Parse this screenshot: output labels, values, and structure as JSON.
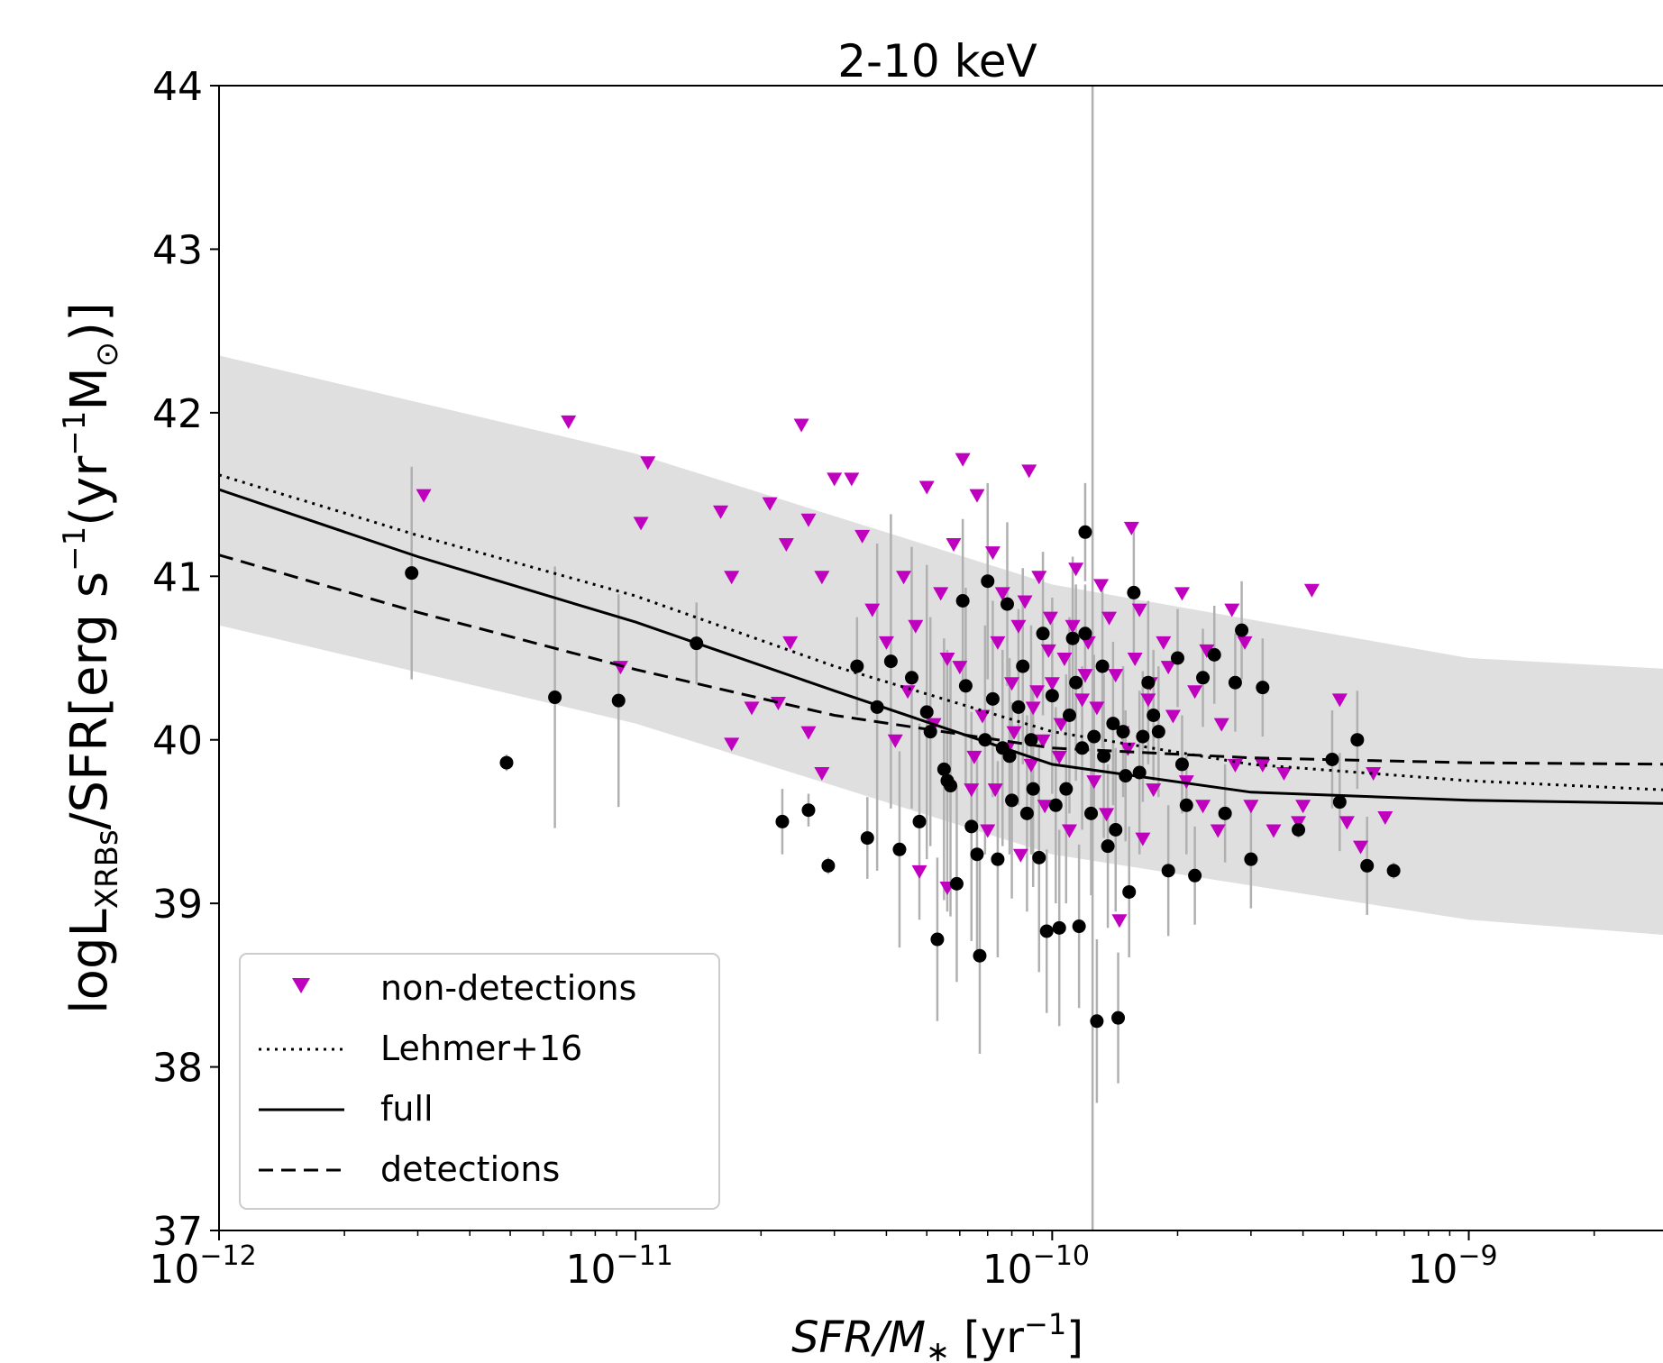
{
  "chart_data": {
    "type": "scatter",
    "title": "2-10 keV",
    "xlabel": {
      "italic": "SFR/M",
      "sub": "∗",
      "rest": " [yr",
      "sup": "−1",
      "close": "]"
    },
    "ylabel": {
      "pre": "logL",
      "sub": "XRBs",
      "mid": "/SFR[erg s",
      "sup1": "−1",
      "mid2": "(yr",
      "sup2": "−1",
      "mid3": "M",
      "sub2": "⊙",
      "close": ")]"
    },
    "x_scale": "log",
    "xlim": [
      1e-12,
      3.2e-09
    ],
    "ylim": [
      37,
      44
    ],
    "x_ticks": [
      {
        "value": 1e-12,
        "base": "10",
        "exp": "−12"
      },
      {
        "value": 1e-11,
        "base": "10",
        "exp": "−11"
      },
      {
        "value": 1e-10,
        "base": "10",
        "exp": "−10"
      },
      {
        "value": 1e-09,
        "base": "10",
        "exp": "−9"
      }
    ],
    "y_ticks": [
      "37",
      "38",
      "39",
      "40",
      "41",
      "42",
      "43",
      "44"
    ],
    "grid": false,
    "vertical_line": {
      "x": 1.25e-10,
      "color": "#b0b0b0"
    },
    "band": {
      "color": "#d9d9d9",
      "lower": [
        [
          1e-12,
          40.7
        ],
        [
          1e-11,
          40.1
        ],
        [
          1e-10,
          39.3
        ],
        [
          1e-09,
          38.9
        ],
        [
          3.2e-09,
          38.8
        ]
      ],
      "upper": [
        [
          1e-12,
          42.35
        ],
        [
          1e-11,
          41.75
        ],
        [
          1e-10,
          40.95
        ],
        [
          1e-09,
          40.5
        ],
        [
          3.2e-09,
          40.43
        ]
      ]
    },
    "lines": [
      {
        "name": "Lehmer+16",
        "style": "dotted",
        "points": [
          [
            1e-12,
            41.62
          ],
          [
            3e-12,
            41.25
          ],
          [
            1e-11,
            40.88
          ],
          [
            3e-11,
            40.45
          ],
          [
            1e-10,
            40.05
          ],
          [
            3e-10,
            39.85
          ],
          [
            1e-09,
            39.75
          ],
          [
            3.2e-09,
            39.69
          ]
        ]
      },
      {
        "name": "full",
        "style": "solid",
        "points": [
          [
            1e-12,
            41.53
          ],
          [
            3e-12,
            41.12
          ],
          [
            1e-11,
            40.72
          ],
          [
            3e-11,
            40.3
          ],
          [
            1e-10,
            39.85
          ],
          [
            3e-10,
            39.68
          ],
          [
            1e-09,
            39.63
          ],
          [
            3.2e-09,
            39.61
          ]
        ]
      },
      {
        "name": "detections",
        "style": "dashed",
        "points": [
          [
            1e-12,
            41.13
          ],
          [
            3e-12,
            40.78
          ],
          [
            1e-11,
            40.43
          ],
          [
            3e-11,
            40.15
          ],
          [
            1e-10,
            39.95
          ],
          [
            3e-10,
            39.89
          ],
          [
            1e-09,
            39.86
          ],
          [
            3.2e-09,
            39.85
          ]
        ]
      }
    ],
    "series": [
      {
        "name": "non-detections",
        "marker": "triangle-down",
        "color": "#bf00bf",
        "points": [
          [
            3.1e-12,
            41.5
          ],
          [
            6.9e-12,
            41.95
          ],
          [
            1.03e-11,
            41.33
          ],
          [
            1.07e-11,
            41.7
          ],
          [
            9.2e-12,
            40.45
          ],
          [
            1.6e-11,
            41.4
          ],
          [
            1.7e-11,
            41.0
          ],
          [
            1.9e-11,
            40.2
          ],
          [
            2.1e-11,
            41.45
          ],
          [
            2.3e-11,
            41.2
          ],
          [
            2.35e-11,
            40.6
          ],
          [
            2.5e-11,
            41.93
          ],
          [
            2.6e-11,
            41.35
          ],
          [
            2.8e-11,
            41.0
          ],
          [
            3e-11,
            41.6
          ],
          [
            3.3e-11,
            41.6
          ],
          [
            3.5e-11,
            41.25
          ],
          [
            3.7e-11,
            40.8
          ],
          [
            2.6e-11,
            40.05
          ],
          [
            2.2e-11,
            40.23
          ],
          [
            1.7e-11,
            39.98
          ],
          [
            2.8e-11,
            39.8
          ],
          [
            4e-11,
            40.6
          ],
          [
            4.4e-11,
            41.0
          ],
          [
            4.7e-11,
            40.7
          ],
          [
            5e-11,
            41.55
          ],
          [
            5.4e-11,
            40.9
          ],
          [
            5.8e-11,
            41.2
          ],
          [
            6.1e-11,
            41.72
          ],
          [
            6.6e-11,
            41.5
          ],
          [
            7.2e-11,
            41.15
          ],
          [
            7.6e-11,
            40.9
          ],
          [
            8.3e-11,
            40.7
          ],
          [
            8.8e-11,
            41.65
          ],
          [
            9.3e-11,
            41.0
          ],
          [
            9.9e-11,
            40.75
          ],
          [
            1.07e-10,
            40.5
          ],
          [
            1.14e-10,
            41.05
          ],
          [
            1.22e-10,
            40.6
          ],
          [
            1.31e-10,
            40.95
          ],
          [
            1.42e-10,
            40.4
          ],
          [
            1.55e-10,
            41.3
          ],
          [
            1.62e-10,
            40.8
          ],
          [
            1.72e-10,
            40.35
          ],
          [
            1.85e-10,
            40.6
          ],
          [
            1.95e-10,
            40.15
          ],
          [
            2.05e-10,
            40.9
          ],
          [
            2.2e-10,
            40.3
          ],
          [
            2.35e-10,
            40.55
          ],
          [
            2.55e-10,
            40.1
          ],
          [
            2.7e-10,
            40.8
          ],
          [
            2.9e-10,
            40.6
          ],
          [
            3.2e-10,
            39.85
          ],
          [
            3.6e-10,
            39.8
          ],
          [
            3.9e-10,
            39.5
          ],
          [
            4.2e-10,
            40.92
          ],
          [
            4.9e-10,
            40.25
          ],
          [
            5.1e-10,
            39.5
          ],
          [
            5.5e-10,
            39.35
          ],
          [
            5.9e-10,
            39.8
          ],
          [
            6.3e-10,
            39.53
          ],
          [
            4.8e-11,
            39.2
          ],
          [
            5.6e-11,
            39.1
          ],
          [
            6.4e-11,
            39.7
          ],
          [
            7e-11,
            39.45
          ],
          [
            7.8e-11,
            39.95
          ],
          [
            8.4e-11,
            39.3
          ],
          [
            9e-11,
            40.2
          ],
          [
            9.6e-11,
            39.6
          ],
          [
            1.04e-10,
            39.9
          ],
          [
            1.1e-10,
            39.45
          ],
          [
            1.18e-10,
            40.25
          ],
          [
            1.26e-10,
            39.75
          ],
          [
            1.35e-10,
            39.55
          ],
          [
            1.45e-10,
            38.9
          ],
          [
            1.52e-10,
            39.95
          ],
          [
            1.65e-10,
            39.4
          ],
          [
            1.75e-10,
            39.7
          ],
          [
            1.9e-10,
            40.45
          ],
          [
            2.1e-10,
            39.75
          ],
          [
            2.3e-10,
            39.6
          ],
          [
            2.5e-10,
            39.45
          ],
          [
            2.75e-10,
            39.85
          ],
          [
            3e-10,
            39.6
          ],
          [
            3.4e-10,
            39.45
          ],
          [
            4e-10,
            39.6
          ],
          [
            6e-11,
            40.45
          ],
          [
            6.8e-11,
            40.15
          ],
          [
            7.4e-11,
            40.6
          ],
          [
            8e-11,
            40.35
          ],
          [
            8.6e-11,
            40.85
          ],
          [
            9.2e-11,
            40.3
          ],
          [
            9.8e-11,
            40.55
          ],
          [
            1.05e-10,
            40.1
          ],
          [
            1.12e-10,
            40.7
          ],
          [
            1.2e-10,
            40.4
          ],
          [
            1.28e-10,
            40.2
          ],
          [
            1.37e-10,
            40.75
          ],
          [
            1.47e-10,
            40.05
          ],
          [
            1.58e-10,
            40.5
          ],
          [
            1.7e-10,
            40.25
          ],
          [
            5.2e-11,
            40.1
          ],
          [
            5.6e-11,
            40.5
          ],
          [
            4.5e-11,
            40.3
          ],
          [
            4.2e-11,
            40.0
          ],
          [
            6.5e-11,
            39.9
          ],
          [
            7.3e-11,
            39.7
          ],
          [
            8.1e-11,
            40.05
          ],
          [
            8.9e-11,
            39.85
          ],
          [
            9.5e-11,
            40.0
          ],
          [
            1e-10,
            40.35
          ]
        ]
      },
      {
        "name": "",
        "marker": "circle",
        "color": "#000000",
        "points": [
          [
            2.9e-12,
            41.02,
            0.65
          ],
          [
            4.9e-12,
            39.86,
            0.05
          ],
          [
            6.4e-12,
            40.26,
            0.8
          ],
          [
            9.1e-12,
            40.24,
            0.65
          ],
          [
            1.4e-11,
            40.59,
            0.25
          ],
          [
            2.25e-11,
            39.5,
            0.2
          ],
          [
            2.6e-11,
            39.57,
            0.1
          ],
          [
            2.9e-11,
            39.23,
            0.05
          ],
          [
            3.4e-11,
            40.45,
            0.3
          ],
          [
            3.6e-11,
            39.4,
            0.25
          ],
          [
            3.8e-11,
            40.2,
            1.0
          ],
          [
            4.1e-11,
            40.48,
            0.9
          ],
          [
            4.3e-11,
            39.33,
            0.6
          ],
          [
            4.6e-11,
            40.38,
            0.8
          ],
          [
            4.8e-11,
            39.5,
            0.6
          ],
          [
            5e-11,
            40.17,
            0.9
          ],
          [
            5.3e-11,
            38.78,
            0.5
          ],
          [
            5.5e-11,
            39.82,
            0.8
          ],
          [
            5.9e-11,
            39.12,
            0.6
          ],
          [
            6.2e-11,
            40.33,
            0.6
          ],
          [
            6.4e-11,
            39.47,
            0.7
          ],
          [
            6.7e-11,
            38.68,
            0.6
          ],
          [
            7e-11,
            40.97,
            0.6
          ],
          [
            7.4e-11,
            39.27,
            0.6
          ],
          [
            7.8e-11,
            40.83,
            0.5
          ],
          [
            8e-11,
            39.63,
            0.6
          ],
          [
            8.5e-11,
            40.45,
            0.6
          ],
          [
            8.9e-11,
            40.0,
            0.7
          ],
          [
            9.3e-11,
            39.28,
            0.7
          ],
          [
            9.7e-11,
            38.83,
            0.5
          ],
          [
            1e-10,
            40.27,
            0.6
          ],
          [
            1.04e-10,
            38.85,
            0.6
          ],
          [
            1.08e-10,
            39.7,
            0.7
          ],
          [
            1.12e-10,
            40.62,
            0.5
          ],
          [
            1.16e-10,
            38.86,
            0.5
          ],
          [
            1.2e-10,
            41.27,
            0.3
          ],
          [
            1.24e-10,
            39.55,
            0.5
          ],
          [
            1.28e-10,
            38.28,
            0.5
          ],
          [
            1.32e-10,
            40.45,
            0.5
          ],
          [
            1.36e-10,
            39.35,
            0.5
          ],
          [
            1.4e-10,
            40.1,
            0.5
          ],
          [
            1.44e-10,
            38.3,
            0.4
          ],
          [
            1.48e-10,
            40.05,
            0.4
          ],
          [
            1.53e-10,
            39.07,
            0.4
          ],
          [
            1.57e-10,
            40.9,
            0.4
          ],
          [
            1.62e-10,
            39.8,
            0.5
          ],
          [
            1.7e-10,
            40.35,
            0.5
          ],
          [
            1.8e-10,
            40.05,
            0.4
          ],
          [
            1.9e-10,
            39.2,
            0.4
          ],
          [
            2e-10,
            40.5,
            0.3
          ],
          [
            2.1e-10,
            39.6,
            0.3
          ],
          [
            2.2e-10,
            39.17,
            0.3
          ],
          [
            2.3e-10,
            40.38,
            0.3
          ],
          [
            2.45e-10,
            40.52,
            0.3
          ],
          [
            2.6e-10,
            39.55,
            0.3
          ],
          [
            2.75e-10,
            40.35,
            0.3
          ],
          [
            2.85e-10,
            40.67,
            0.3
          ],
          [
            3e-10,
            39.27,
            0.3
          ],
          [
            3.2e-10,
            40.32,
            0.3
          ],
          [
            3.9e-10,
            39.45,
            0.05
          ],
          [
            4.7e-10,
            39.88,
            0.3
          ],
          [
            4.9e-10,
            39.62,
            0.3
          ],
          [
            5.4e-10,
            40.0,
            0.3
          ],
          [
            5.7e-10,
            39.23,
            0.3
          ],
          [
            6.6e-10,
            39.2,
            0.05
          ],
          [
            5.7e-11,
            39.72,
            0.8
          ],
          [
            6.9e-11,
            40.0,
            0.7
          ],
          [
            7.6e-11,
            39.95,
            0.6
          ],
          [
            8.3e-11,
            40.2,
            0.6
          ],
          [
            9e-11,
            39.7,
            0.6
          ],
          [
            1.02e-10,
            39.6,
            0.6
          ],
          [
            1.1e-10,
            40.15,
            0.6
          ],
          [
            6.1e-11,
            40.85,
            0.5
          ],
          [
            7.2e-11,
            40.25,
            0.6
          ],
          [
            9.5e-11,
            40.65,
            0.5
          ],
          [
            1.18e-10,
            39.95,
            0.5
          ],
          [
            1.26e-10,
            40.02,
            0.5
          ],
          [
            1.33e-10,
            39.9,
            0.5
          ],
          [
            1.42e-10,
            39.45,
            0.5
          ],
          [
            1.5e-10,
            39.78,
            0.4
          ],
          [
            1.65e-10,
            40.02,
            0.4
          ],
          [
            1.75e-10,
            40.15,
            0.4
          ],
          [
            2.05e-10,
            39.85,
            0.3
          ],
          [
            1.2e-10,
            40.65,
            0.3
          ],
          [
            7.9e-11,
            39.9,
            0.6
          ],
          [
            5.1e-11,
            40.05,
            0.7
          ],
          [
            5.6e-11,
            39.75,
            0.8
          ],
          [
            6.6e-11,
            39.3,
            0.6
          ],
          [
            8.7e-11,
            39.55,
            0.6
          ],
          [
            1.14e-10,
            40.35,
            0.6
          ]
        ]
      }
    ],
    "legend": {
      "placement": "lower-left",
      "entries": [
        "non-detections",
        "Lehmer+16",
        "full",
        "detections"
      ]
    }
  }
}
